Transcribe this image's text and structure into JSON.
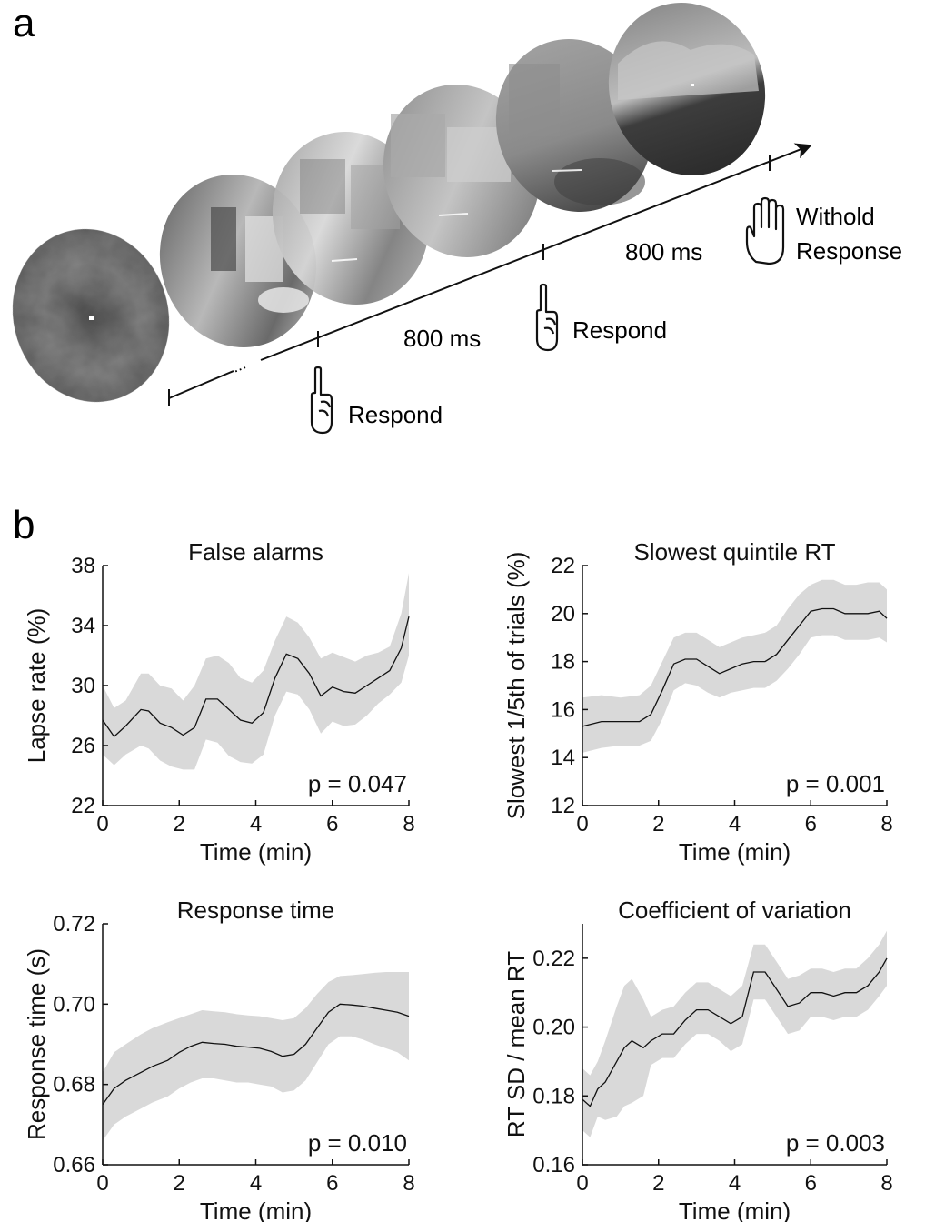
{
  "panel_a": {
    "label": "a",
    "response_labels": [
      "Respond",
      "Respond",
      "Withold",
      "Response"
    ],
    "interval_labels": [
      "800 ms",
      "800 ms"
    ],
    "ellipsis": "..."
  },
  "panel_b": {
    "label": "b"
  },
  "chart_data": [
    {
      "type": "line",
      "title": "False alarms",
      "xlabel": "Time (min)",
      "ylabel": "Lapse rate (%)",
      "xlim": [
        0,
        8
      ],
      "ylim": [
        22,
        38
      ],
      "xticks": [
        0,
        2,
        4,
        6,
        8
      ],
      "yticks": [
        22,
        26,
        30,
        34,
        38
      ],
      "ytick_labels": [
        "22",
        "26",
        "30",
        "34",
        "38"
      ],
      "annotation": "p = 0.047",
      "x": [
        0,
        0.3,
        0.6,
        1.0,
        1.2,
        1.5,
        1.8,
        2.1,
        2.4,
        2.7,
        3.0,
        3.3,
        3.6,
        3.9,
        4.2,
        4.5,
        4.8,
        5.1,
        5.4,
        5.7,
        6.0,
        6.3,
        6.6,
        6.9,
        7.2,
        7.5,
        7.8,
        8.0
      ],
      "y": [
        27.7,
        26.6,
        27.3,
        28.4,
        28.3,
        27.5,
        27.2,
        26.7,
        27.2,
        29.1,
        29.1,
        28.4,
        27.7,
        27.5,
        28.2,
        30.5,
        32.1,
        31.8,
        30.8,
        29.3,
        29.9,
        29.6,
        29.5,
        30.0,
        30.5,
        31.0,
        32.5,
        34.6
      ],
      "band_upper": [
        30.0,
        28.5,
        29.0,
        30.8,
        30.8,
        30.0,
        29.8,
        29.0,
        30.0,
        31.8,
        32.0,
        31.5,
        30.5,
        30.2,
        31.0,
        33.0,
        34.6,
        34.2,
        33.2,
        31.8,
        32.2,
        31.9,
        31.6,
        32.0,
        32.2,
        32.6,
        34.8,
        37.5
      ],
      "band_lower": [
        25.4,
        24.7,
        25.4,
        26.0,
        25.8,
        25.0,
        24.6,
        24.4,
        24.4,
        26.4,
        26.2,
        25.3,
        24.9,
        24.8,
        25.4,
        28.0,
        29.6,
        29.4,
        28.4,
        26.8,
        27.6,
        27.3,
        27.4,
        28.0,
        28.8,
        29.4,
        30.2,
        32.0
      ]
    },
    {
      "type": "line",
      "title": "Slowest quintile RT",
      "xlabel": "Time (min)",
      "ylabel": "Slowest 1/5th of trials (%)",
      "xlim": [
        0,
        8
      ],
      "ylim": [
        12,
        22
      ],
      "xticks": [
        0,
        2,
        4,
        6,
        8
      ],
      "yticks": [
        12,
        14,
        16,
        18,
        20,
        22
      ],
      "ytick_labels": [
        "12",
        "14",
        "16",
        "18",
        "20",
        "22"
      ],
      "annotation": "p = 0.001",
      "x": [
        0,
        0.5,
        1.0,
        1.5,
        1.8,
        2.1,
        2.4,
        2.7,
        3.0,
        3.3,
        3.6,
        3.9,
        4.2,
        4.5,
        4.8,
        5.1,
        5.4,
        5.7,
        6.0,
        6.3,
        6.6,
        6.9,
        7.2,
        7.5,
        7.8,
        8.0
      ],
      "y": [
        15.3,
        15.5,
        15.5,
        15.5,
        15.8,
        16.8,
        17.9,
        18.1,
        18.1,
        17.8,
        17.5,
        17.7,
        17.9,
        18.0,
        18.0,
        18.3,
        18.9,
        19.5,
        20.1,
        20.2,
        20.2,
        20.0,
        20.0,
        20.0,
        20.1,
        19.8
      ],
      "band_upper": [
        16.5,
        16.6,
        16.5,
        16.6,
        17.0,
        18.0,
        19.0,
        19.2,
        19.2,
        18.9,
        18.6,
        18.8,
        19.0,
        19.1,
        19.2,
        19.5,
        20.2,
        20.8,
        21.2,
        21.4,
        21.4,
        21.2,
        21.2,
        21.3,
        21.3,
        21.0
      ],
      "band_lower": [
        14.2,
        14.4,
        14.5,
        14.5,
        14.7,
        15.6,
        16.8,
        17.1,
        17.0,
        16.7,
        16.5,
        16.7,
        16.8,
        16.9,
        16.9,
        17.2,
        17.7,
        18.3,
        19.0,
        19.1,
        19.1,
        18.9,
        18.9,
        18.9,
        19.0,
        18.8
      ]
    },
    {
      "type": "line",
      "title": "Response time",
      "xlabel": "Time (min)",
      "ylabel": "Response time (s)",
      "xlim": [
        0,
        8
      ],
      "ylim": [
        0.66,
        0.72
      ],
      "xticks": [
        0,
        2,
        4,
        6,
        8
      ],
      "yticks": [
        0.66,
        0.68,
        0.7,
        0.72
      ],
      "ytick_labels": [
        "0.66",
        "0.68",
        "0.70",
        "0.72"
      ],
      "annotation": "p = 0.010",
      "x": [
        0,
        0.3,
        0.6,
        1.0,
        1.3,
        1.7,
        2.0,
        2.3,
        2.6,
        2.9,
        3.2,
        3.5,
        3.8,
        4.1,
        4.4,
        4.7,
        5.0,
        5.3,
        5.6,
        5.9,
        6.2,
        6.5,
        6.8,
        7.1,
        7.4,
        7.7,
        8.0
      ],
      "y": [
        0.675,
        0.679,
        0.681,
        0.683,
        0.6845,
        0.686,
        0.688,
        0.6895,
        0.6905,
        0.6902,
        0.69,
        0.6895,
        0.6893,
        0.689,
        0.6882,
        0.687,
        0.6875,
        0.69,
        0.694,
        0.698,
        0.7,
        0.6998,
        0.6995,
        0.699,
        0.6985,
        0.698,
        0.697
      ],
      "band_upper": [
        0.683,
        0.688,
        0.69,
        0.6925,
        0.694,
        0.6955,
        0.6965,
        0.6975,
        0.6985,
        0.6982,
        0.698,
        0.6975,
        0.6972,
        0.697,
        0.6965,
        0.696,
        0.6965,
        0.699,
        0.7025,
        0.7055,
        0.707,
        0.7072,
        0.7075,
        0.7078,
        0.708,
        0.708,
        0.708
      ],
      "band_lower": [
        0.666,
        0.67,
        0.672,
        0.674,
        0.6755,
        0.677,
        0.679,
        0.6805,
        0.6815,
        0.6815,
        0.681,
        0.6805,
        0.6805,
        0.68,
        0.6795,
        0.678,
        0.6785,
        0.681,
        0.6855,
        0.69,
        0.692,
        0.692,
        0.6912,
        0.69,
        0.689,
        0.688,
        0.686
      ]
    },
    {
      "type": "line",
      "title": "Coefficient of variation",
      "xlabel": "Time (min)",
      "ylabel": "RT SD / mean RT",
      "xlim": [
        0,
        8
      ],
      "ylim": [
        0.16,
        0.23
      ],
      "xticks": [
        0,
        2,
        4,
        6,
        8
      ],
      "yticks": [
        0.16,
        0.18,
        0.2,
        0.22
      ],
      "ytick_labels": [
        "0.16",
        "0.18",
        "0.20",
        "0.22"
      ],
      "annotation": "p = 0.003",
      "x": [
        0,
        0.2,
        0.4,
        0.6,
        0.9,
        1.1,
        1.3,
        1.6,
        1.8,
        2.1,
        2.4,
        2.7,
        3.0,
        3.3,
        3.6,
        3.9,
        4.2,
        4.5,
        4.8,
        5.1,
        5.4,
        5.7,
        6.0,
        6.3,
        6.6,
        6.9,
        7.2,
        7.5,
        7.8,
        8.0
      ],
      "y": [
        0.179,
        0.177,
        0.182,
        0.184,
        0.19,
        0.194,
        0.196,
        0.194,
        0.196,
        0.198,
        0.198,
        0.202,
        0.205,
        0.205,
        0.203,
        0.201,
        0.203,
        0.216,
        0.216,
        0.211,
        0.206,
        0.207,
        0.21,
        0.21,
        0.209,
        0.21,
        0.21,
        0.212,
        0.216,
        0.22
      ],
      "band_upper": [
        0.188,
        0.186,
        0.19,
        0.196,
        0.206,
        0.212,
        0.214,
        0.208,
        0.203,
        0.205,
        0.206,
        0.21,
        0.213,
        0.213,
        0.211,
        0.209,
        0.212,
        0.224,
        0.224,
        0.219,
        0.214,
        0.215,
        0.217,
        0.217,
        0.216,
        0.217,
        0.217,
        0.22,
        0.224,
        0.228
      ],
      "band_lower": [
        0.17,
        0.168,
        0.174,
        0.173,
        0.174,
        0.177,
        0.178,
        0.18,
        0.189,
        0.191,
        0.191,
        0.195,
        0.198,
        0.198,
        0.196,
        0.193,
        0.195,
        0.208,
        0.208,
        0.203,
        0.198,
        0.199,
        0.203,
        0.203,
        0.202,
        0.203,
        0.203,
        0.205,
        0.209,
        0.212
      ]
    }
  ]
}
